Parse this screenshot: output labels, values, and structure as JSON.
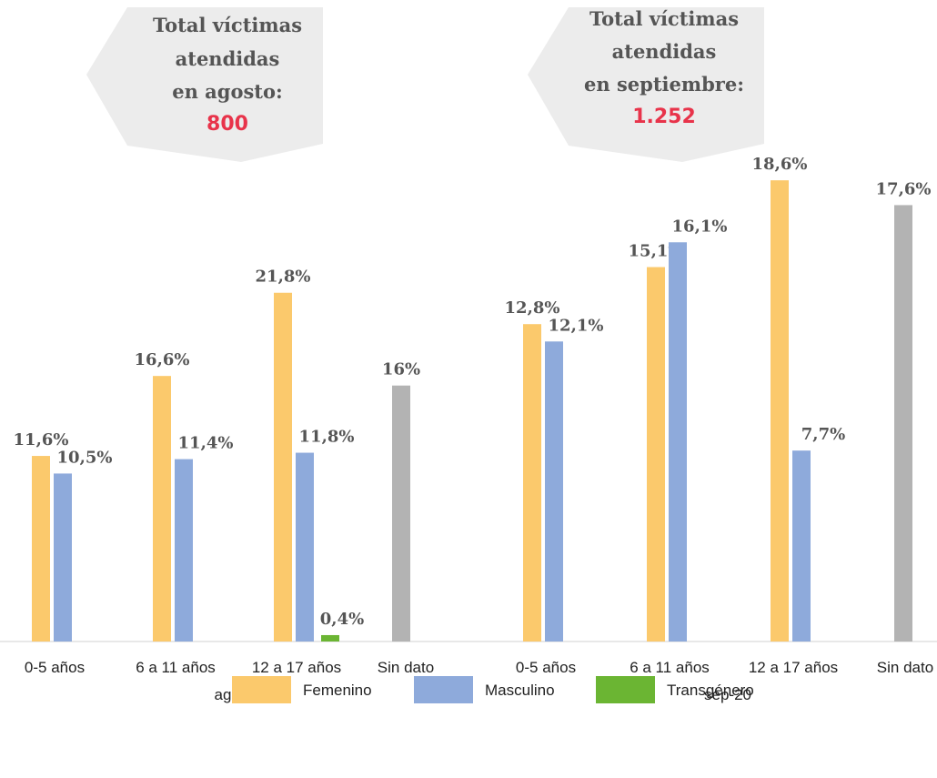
{
  "legend": [
    {
      "name": "Femenino",
      "color": "#fbc96c"
    },
    {
      "name": "Masculino",
      "color": "#8eaadb"
    },
    {
      "name": "Transgénero",
      "color": "#6bb533"
    }
  ],
  "chart_data": [
    {
      "type": "bar",
      "period": "ago-20",
      "callout": {
        "lines": [
          "Total víctimas",
          "atendidas",
          "en agosto:"
        ],
        "total": 800
      },
      "categories": [
        "0-5 años",
        "6 a 11 años",
        "12 a 17 años",
        "Sin dato"
      ],
      "ylim": [
        0,
        31
      ],
      "series": [
        {
          "values": [
            11.6,
            16.6,
            21.8,
            null
          ],
          "value_labels": [
            "11,6%",
            "16,6%",
            "21,8%",
            null
          ]
        },
        {
          "values": [
            10.5,
            11.4,
            11.8,
            null
          ],
          "value_labels": [
            "10,5%",
            "11,4%",
            "11,8%",
            null
          ]
        },
        {
          "values": [
            null,
            null,
            0.4,
            null
          ],
          "value_labels": [
            null,
            null,
            "0,4%",
            null
          ]
        }
      ],
      "unassigned": {
        "color": "#b3b3b3",
        "values": [
          null,
          null,
          null,
          16
        ],
        "value_labels": [
          null,
          null,
          null,
          "16%"
        ]
      }
    },
    {
      "type": "bar",
      "period": "sep-20",
      "callout": {
        "lines": [
          "Total víctimas",
          "atendidas",
          "en septiembre:"
        ],
        "total": {
          "value": 1252,
          "label": "1.252"
        }
      },
      "categories": [
        "0-5 años",
        "6 a 11 años",
        "12 a 17 años",
        "Sin dato"
      ],
      "ylim": [
        0,
        20
      ],
      "series": [
        {
          "values": [
            12.8,
            15.1,
            18.6,
            null
          ],
          "value_labels": [
            "12,8%",
            "15,1%",
            "18,6%",
            null
          ]
        },
        {
          "values": [
            12.1,
            16.1,
            7.7,
            null
          ],
          "value_labels": [
            "12,1%",
            "16,1%",
            "7,7%",
            null
          ]
        },
        {
          "values": [
            null,
            null,
            null,
            null
          ],
          "value_labels": [
            null,
            null,
            null,
            null
          ]
        }
      ],
      "unassigned": {
        "color": "#b3b3b3",
        "values": [
          null,
          null,
          null,
          17.6
        ],
        "value_labels": [
          null,
          null,
          null,
          "17,6%"
        ]
      }
    }
  ]
}
